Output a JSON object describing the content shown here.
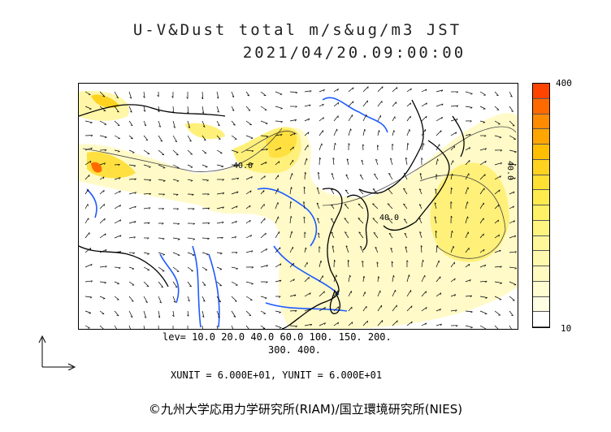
{
  "title": {
    "line1": "U-V&Dust total m/s&ug/m3 JST",
    "line2": "2021/04/20.09:00:00"
  },
  "colorbar": {
    "max_label": "400",
    "min_label": "10",
    "colors": [
      "#ff4400",
      "#ff6a00",
      "#ff8c00",
      "#ffa500",
      "#ffbf00",
      "#ffd21f",
      "#ffe033",
      "#ffeb4d",
      "#fff066",
      "#fff480",
      "#fff799",
      "#fff9ad",
      "#fffbc0",
      "#fffcd2",
      "#fffde3",
      "#ffffff"
    ]
  },
  "map": {
    "contour_labels": [
      "40.0",
      "40.0",
      "40.0"
    ],
    "colors": {
      "coast": "#000000",
      "river": "#1e5aff",
      "dust_light": "#fffac8",
      "dust_mid": "#fff080",
      "dust_high": "#ffe040",
      "dust_peak": "#ff6a00"
    }
  },
  "legend": {
    "lev_line1": "lev= 10.0 20.0 40.0 60.0 100. 150. 200.",
    "lev_line2": "300. 400.",
    "units": "XUNIT = 6.000E+01, YUNIT = 6.000E+01"
  },
  "footer": "©九州大学応用力学研究所(RIAM)/国立環境研究所(NIES)"
}
